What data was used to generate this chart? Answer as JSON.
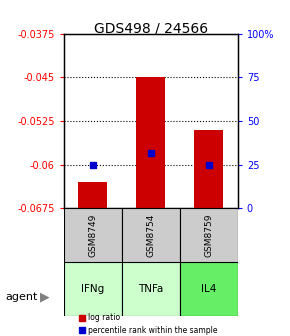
{
  "title": "GDS498 / 24566",
  "ylim_left": [
    -0.0675,
    -0.0375
  ],
  "ylim_right": [
    0,
    100
  ],
  "yticks_left": [
    -0.0675,
    -0.06,
    -0.0525,
    -0.045,
    -0.0375
  ],
  "yticks_right": [
    0,
    25,
    50,
    75,
    100
  ],
  "ytick_labels_left": [
    "-0.0675",
    "-0.06",
    "-0.0525",
    "-0.045",
    "-0.0375"
  ],
  "ytick_labels_right": [
    "0",
    "25",
    "50",
    "75",
    "100%"
  ],
  "samples": [
    "GSM8749",
    "GSM8754",
    "GSM8759"
  ],
  "agents": [
    "IFNg",
    "TNFa",
    "IL4"
  ],
  "bar_bottoms": [
    -0.0675,
    -0.0675,
    -0.0675
  ],
  "bar_tops": [
    -0.063,
    -0.045,
    -0.054
  ],
  "percentile_values": [
    -0.06,
    -0.058,
    -0.06
  ],
  "bar_color": "#cc0000",
  "percentile_color": "#0000cc",
  "agent_colors": [
    "#ccffcc",
    "#ccffcc",
    "#66ee66"
  ],
  "sample_box_color": "#cccccc",
  "legend_bar_color": "#cc0000",
  "legend_dot_color": "#0000cc"
}
